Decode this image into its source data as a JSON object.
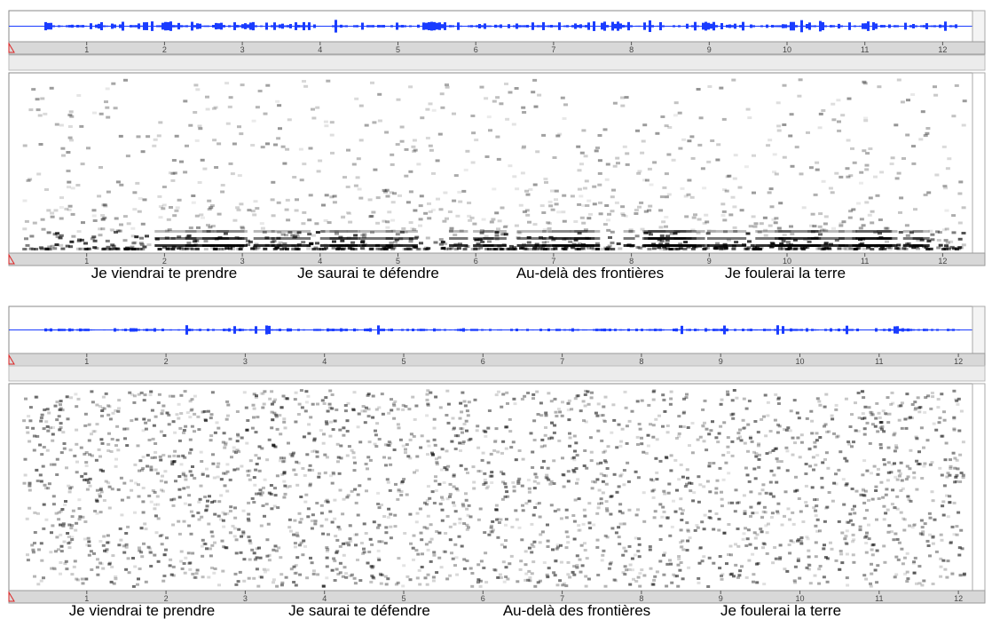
{
  "panels": [
    {
      "ruler_ticks": [
        1,
        2,
        3,
        4,
        5,
        6,
        7,
        8,
        9,
        10,
        11,
        12
      ],
      "captions": [
        "Je viendrai te prendre",
        "Je saurai te défendre",
        "Au-delà des frontières",
        "Je foulerai la terre"
      ]
    },
    {
      "ruler_ticks": [
        1,
        2,
        3,
        4,
        5,
        6,
        7,
        8,
        9,
        10,
        11,
        12
      ],
      "captions": [
        "Je viendrai te prendre",
        "Je saurai te défendre",
        "Au-delà des frontières",
        "Je foulerai la terre"
      ]
    }
  ]
}
